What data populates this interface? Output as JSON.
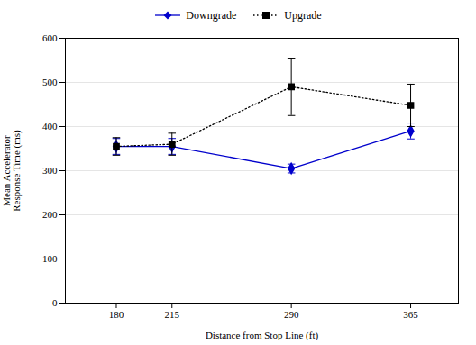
{
  "chart_data": {
    "type": "line",
    "xlabel": "Distance from Stop Line (ft)",
    "ylabel": "Mean Accelerator\nResponse Time (ms)",
    "x": [
      180,
      215,
      290,
      365
    ],
    "series": [
      {
        "name": "Downgrade",
        "color": "#0000cc",
        "values": [
          355,
          355,
          305,
          390
        ],
        "errors": [
          18,
          18,
          10,
          18
        ],
        "marker": "diamond",
        "line_style": "solid"
      },
      {
        "name": "Upgrade",
        "color": "#000000",
        "values": [
          355,
          360,
          490,
          448
        ],
        "errors": [
          20,
          25,
          65,
          48
        ],
        "marker": "square",
        "line_style": "dotted"
      }
    ],
    "xlim": [
      148,
      395
    ],
    "xticks": [
      180,
      215,
      290,
      365
    ],
    "ylim": [
      0,
      600
    ],
    "yticks": [
      0,
      100,
      200,
      300,
      400,
      500,
      600
    ],
    "grid": "y",
    "legend": "top"
  }
}
